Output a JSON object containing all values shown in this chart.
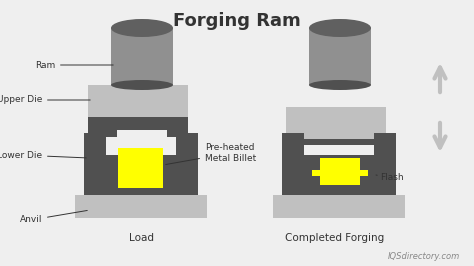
{
  "title": "Forging Ram",
  "title_fontsize": 13,
  "bg_color": "#efefef",
  "dark_gray": "#505050",
  "light_gray": "#c0c0c0",
  "medium_gray": "#909090",
  "darker_gray": "#606060",
  "yellow": "#ffff00",
  "text_color": "#333333",
  "label_fontsize": 6.5,
  "caption_fontsize": 7.5,
  "watermark": "IQSdirectory.com",
  "label_load": "Load",
  "label_completed": "Completed Forging",
  "labels": {
    "ram": "Ram",
    "upper_die": "Upper Die",
    "lower_die": "Lower Die",
    "anvil": "Anvil",
    "preheated": "Pre-heated\nMetal Billet",
    "flash": "Flash"
  }
}
